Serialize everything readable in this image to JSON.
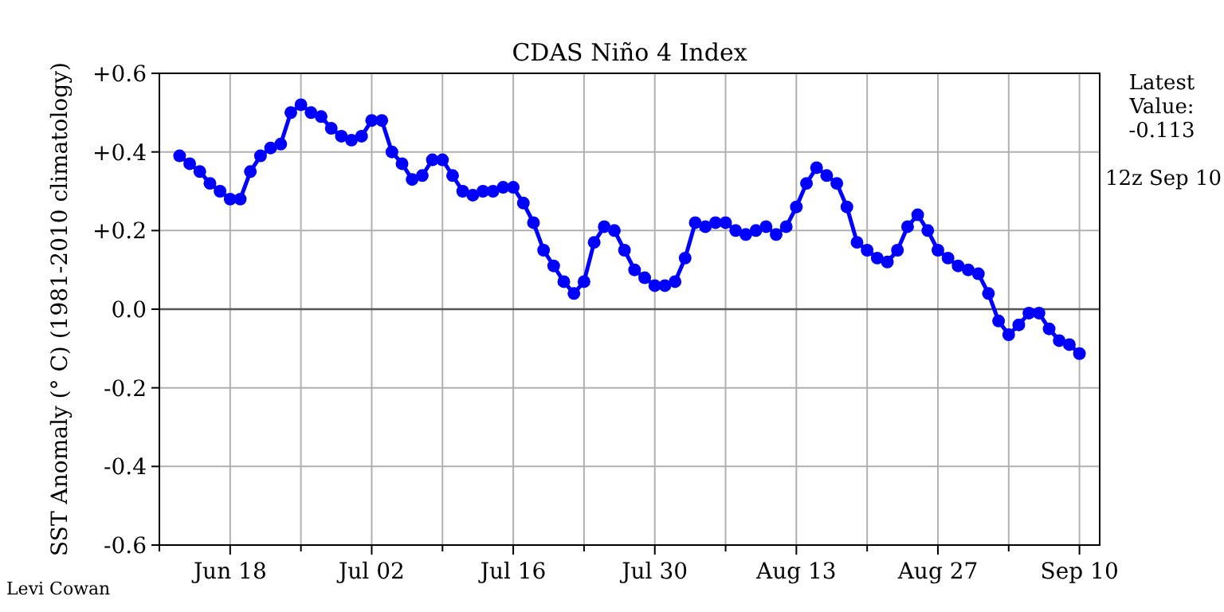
{
  "chart_data": {
    "type": "line",
    "title": "CDAS Niño 4 Index",
    "ylabel": "SST Anomaly (° C) (1981-2010 climatology)",
    "x": [
      "--06-13",
      "--06-14",
      "--06-15",
      "--06-16",
      "--06-17",
      "--06-18",
      "--06-19",
      "--06-20",
      "--06-21",
      "--06-22",
      "--06-23",
      "--06-24",
      "--06-25",
      "--06-26",
      "--06-27",
      "--06-28",
      "--06-29",
      "--06-30",
      "--07-01",
      "--07-02",
      "--07-03",
      "--07-04",
      "--07-05",
      "--07-06",
      "--07-07",
      "--07-08",
      "--07-09",
      "--07-10",
      "--07-11",
      "--07-12",
      "--07-13",
      "--07-14",
      "--07-15",
      "--07-16",
      "--07-17",
      "--07-18",
      "--07-19",
      "--07-20",
      "--07-21",
      "--07-22",
      "--07-23",
      "--07-24",
      "--07-25",
      "--07-26",
      "--07-27",
      "--07-28",
      "--07-29",
      "--07-30",
      "--07-31",
      "--08-01",
      "--08-02",
      "--08-03",
      "--08-04",
      "--08-05",
      "--08-06",
      "--08-07",
      "--08-08",
      "--08-09",
      "--08-10",
      "--08-11",
      "--08-12",
      "--08-13",
      "--08-14",
      "--08-15",
      "--08-16",
      "--08-17",
      "--08-18",
      "--08-19",
      "--08-20",
      "--08-21",
      "--08-22",
      "--08-23",
      "--08-24",
      "--08-25",
      "--08-26",
      "--08-27",
      "--08-28",
      "--08-29",
      "--08-30",
      "--08-31",
      "--09-01",
      "--09-02",
      "--09-03",
      "--09-04",
      "--09-05",
      "--09-06",
      "--09-07",
      "--09-08",
      "--09-09",
      "--09-10"
    ],
    "series": [
      {
        "color": "#0000ff",
        "values": [
          0.39,
          0.37,
          0.35,
          0.32,
          0.3,
          0.28,
          0.28,
          0.35,
          0.39,
          0.41,
          0.42,
          0.5,
          0.52,
          0.5,
          0.49,
          0.46,
          0.44,
          0.43,
          0.44,
          0.48,
          0.48,
          0.4,
          0.37,
          0.33,
          0.34,
          0.38,
          0.38,
          0.34,
          0.3,
          0.29,
          0.3,
          0.3,
          0.31,
          0.31,
          0.27,
          0.22,
          0.15,
          0.11,
          0.07,
          0.04,
          0.07,
          0.17,
          0.21,
          0.2,
          0.15,
          0.1,
          0.08,
          0.06,
          0.06,
          0.07,
          0.13,
          0.22,
          0.21,
          0.22,
          0.22,
          0.2,
          0.19,
          0.2,
          0.21,
          0.19,
          0.21,
          0.26,
          0.32,
          0.36,
          0.34,
          0.32,
          0.26,
          0.17,
          0.15,
          0.13,
          0.12,
          0.15,
          0.21,
          0.24,
          0.2,
          0.15,
          0.13,
          0.11,
          0.1,
          0.09,
          0.04,
          -0.03,
          -0.065,
          -0.04,
          -0.01,
          -0.01,
          -0.05,
          -0.08,
          -0.09,
          -0.113
        ]
      }
    ],
    "xlim": [
      "--06-11",
      "--09-12"
    ],
    "xticks": [
      {
        "value": "--06-11",
        "label": null
      },
      {
        "value": "--06-18",
        "label": "Jun 18"
      },
      {
        "value": "--06-25",
        "label": null
      },
      {
        "value": "--07-02",
        "label": "Jul 02"
      },
      {
        "value": "--07-09",
        "label": null
      },
      {
        "value": "--07-16",
        "label": "Jul 16"
      },
      {
        "value": "--07-23",
        "label": null
      },
      {
        "value": "--07-30",
        "label": "Jul 30"
      },
      {
        "value": "--08-06",
        "label": null
      },
      {
        "value": "--08-13",
        "label": "Aug 13"
      },
      {
        "value": "--08-20",
        "label": null
      },
      {
        "value": "--08-27",
        "label": "Aug 27"
      },
      {
        "value": "--09-03",
        "label": null
      },
      {
        "value": "--09-10",
        "label": "Sep 10"
      }
    ],
    "ylim": [
      -0.6,
      0.6
    ],
    "yticks": [
      {
        "value": -0.6,
        "label": "-0.6"
      },
      {
        "value": -0.4,
        "label": "-0.4"
      },
      {
        "value": -0.2,
        "label": "-0.2"
      },
      {
        "value": 0,
        "label": "0.0"
      },
      {
        "value": 0.2,
        "label": "+0.2"
      },
      {
        "value": 0.4,
        "label": "+0.4"
      },
      {
        "value": 0.6,
        "label": "+0.6"
      }
    ],
    "ref_lines": [
      {
        "axis": "y",
        "value": 0,
        "color": "#555555"
      }
    ],
    "grid": true,
    "marker": "circle",
    "line_style": "solid",
    "annotations": [
      "Latest\nValue:\n-0.113",
      "12z Sep 10",
      "Levi Cowan"
    ]
  }
}
